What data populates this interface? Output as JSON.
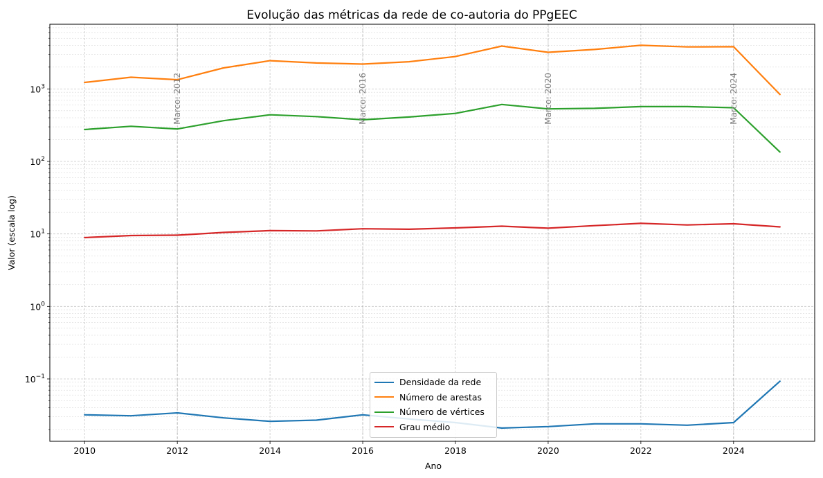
{
  "chart_data": {
    "type": "line",
    "title": "Evolução das métricas da rede de co-autoria do PPgEEC",
    "xlabel": "Ano",
    "ylabel": "Valor (escala log)",
    "yscale": "log",
    "xlim": [
      2009.25,
      2025.75
    ],
    "ylim": [
      0.0138,
      7800
    ],
    "x_ticks": [
      2010,
      2012,
      2014,
      2016,
      2018,
      2020,
      2022,
      2024
    ],
    "y_ticks": [
      {
        "value": 0.1,
        "base": "10",
        "exp": "−1"
      },
      {
        "value": 1,
        "base": "10",
        "exp": "0"
      },
      {
        "value": 10,
        "base": "10",
        "exp": "1"
      },
      {
        "value": 100,
        "base": "10",
        "exp": "2"
      },
      {
        "value": 1000,
        "base": "10",
        "exp": "3"
      }
    ],
    "grid": true,
    "legend_position": "lower-center",
    "x": [
      2010,
      2011,
      2012,
      2013,
      2014,
      2015,
      2016,
      2017,
      2018,
      2019,
      2020,
      2021,
      2022,
      2023,
      2024,
      2025
    ],
    "series": [
      {
        "name": "Densidade da rede",
        "color": "#1f77b4",
        "values": [
          0.032,
          0.031,
          0.034,
          0.029,
          0.026,
          0.027,
          0.032,
          0.028,
          0.025,
          0.021,
          0.022,
          0.024,
          0.024,
          0.023,
          0.025,
          0.093
        ]
      },
      {
        "name": "Número de arestas",
        "color": "#ff7f0e",
        "values": [
          1230,
          1450,
          1340,
          1950,
          2450,
          2280,
          2200,
          2370,
          2800,
          3900,
          3200,
          3500,
          4000,
          3800,
          3820,
          840
        ]
      },
      {
        "name": "Número de vértices",
        "color": "#2ca02c",
        "values": [
          275,
          305,
          280,
          365,
          440,
          415,
          375,
          410,
          460,
          610,
          530,
          540,
          570,
          570,
          550,
          135
        ]
      },
      {
        "name": "Grau médio",
        "color": "#d62728",
        "values": [
          8.9,
          9.5,
          9.6,
          10.5,
          11.1,
          11.0,
          11.8,
          11.6,
          12.1,
          12.8,
          12.0,
          13.0,
          14.0,
          13.3,
          13.8,
          12.5
        ]
      }
    ],
    "annotations": [
      {
        "text": "Marco: 2012",
        "x": 2012
      },
      {
        "text": "Marco: 2016",
        "x": 2016
      },
      {
        "text": "Marco: 2020",
        "x": 2020
      },
      {
        "text": "Marco: 2024",
        "x": 2024
      }
    ]
  }
}
